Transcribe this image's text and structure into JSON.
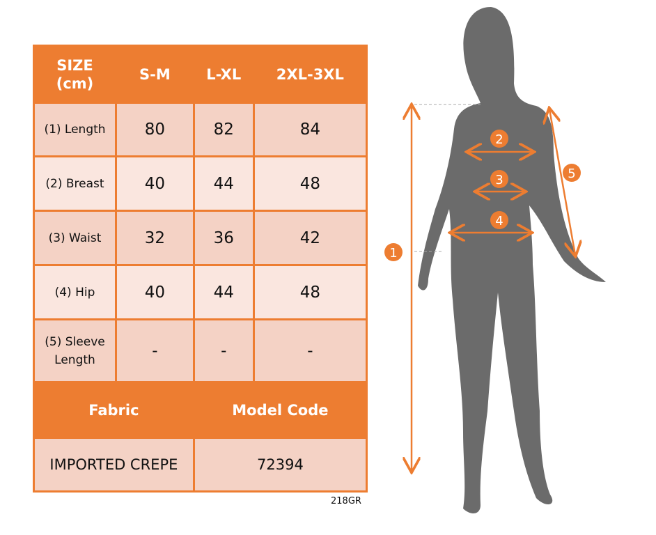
{
  "table": {
    "header": [
      "SIZE\n(cm)",
      "S-M",
      "L-XL",
      "2XL-3XL"
    ],
    "rows": [
      {
        "label": "(1) Length",
        "values": [
          "80",
          "82",
          "84"
        ]
      },
      {
        "label": "(2) Breast",
        "values": [
          "40",
          "44",
          "48"
        ]
      },
      {
        "label": "(3) Waist",
        "values": [
          "32",
          "36",
          "42"
        ]
      },
      {
        "label": "(4) Hip",
        "values": [
          "40",
          "44",
          "48"
        ]
      },
      {
        "label": "(5) Sleeve Length",
        "values": [
          "-",
          "-",
          "-"
        ]
      }
    ],
    "fabric_label": "Fabric",
    "model_code_label": "Model Code",
    "fabric_value": "IMPORTED CREPE",
    "model_code_value": "72394"
  },
  "image_code": "218GR",
  "figure": {
    "markers": [
      "1",
      "2",
      "3",
      "4",
      "5"
    ],
    "accent": "#ED7D31",
    "silhouette": "#6B6B6B"
  }
}
